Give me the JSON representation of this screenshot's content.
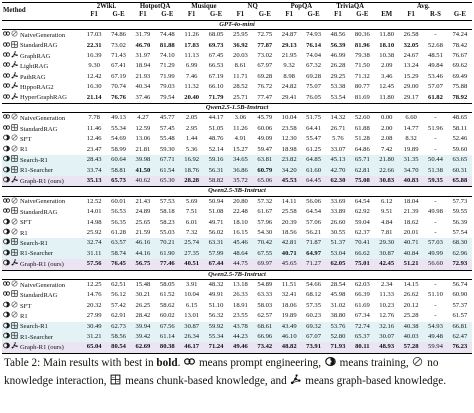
{
  "table": {
    "method_header": "Method",
    "groups": [
      "2Wiki.",
      "HotpotQA",
      "Musique",
      "NQ",
      "PopQA",
      "TriviaQA",
      "Avg."
    ],
    "subcols": [
      "F1",
      "G-E",
      "F1",
      "G-E",
      "F1",
      "G-E",
      "F1",
      "G-E",
      "F1",
      "G-E",
      "F1",
      "G-E",
      "EM",
      "F1",
      "R-S",
      "G-E"
    ],
    "sections": [
      {
        "title": "GPT-4o-mini",
        "rows": [
          {
            "icons": [
              "prompt",
              "none"
            ],
            "method": "NaiveGeneration",
            "values": [
              "17.03",
              "74.86",
              "31.79",
              "74.48",
              "11.26",
              "68.05",
              "25.95",
              "72.75",
              "24.87",
              "74.93",
              "48.56",
              "80.36",
              "11.80",
              "26.58",
              "-",
              "74.24"
            ],
            "bold": [],
            "band": false,
            "ours": false
          },
          {
            "icons": [
              "prompt",
              "chunk"
            ],
            "method": "StandardRAG",
            "values": [
              "22.31",
              "73.02",
              "46.70",
              "81.88",
              "17.83",
              "69.73",
              "36.92",
              "77.87",
              "29.13",
              "76.14",
              "56.39",
              "81.96",
              "18.10",
              "32.05",
              "52.68",
              "78.42"
            ],
            "bold": [
              0,
              2,
              3,
              4,
              5,
              6,
              7,
              8,
              9,
              10,
              11,
              12,
              13
            ],
            "band": false,
            "ours": false
          },
          {
            "icons": [
              "prompt",
              "graph"
            ],
            "method": "GraphRAG",
            "values": [
              "16.39",
              "71.43",
              "31.97",
              "74.10",
              "11.13",
              "67.45",
              "20.03",
              "73.02",
              "21.95",
              "74.04",
              "46.99",
              "79.38",
              "10.38",
              "24.67",
              "48.51",
              "76.67"
            ],
            "bold": [],
            "band": false,
            "ours": false
          },
          {
            "icons": [
              "prompt",
              "graph"
            ],
            "method": "LightRAG",
            "values": [
              "9.30",
              "67.41",
              "18.94",
              "71.29",
              "6.99",
              "66.53",
              "8.61",
              "67.97",
              "9.32",
              "67.32",
              "26.28",
              "71.50",
              "2.09",
              "13.24",
              "49.84",
              "69.62"
            ],
            "bold": [],
            "band": false,
            "ours": false
          },
          {
            "icons": [
              "prompt",
              "graph"
            ],
            "method": "PathRAG",
            "values": [
              "12.42",
              "67.19",
              "21.93",
              "71.99",
              "7.46",
              "67.19",
              "11.71",
              "69.28",
              "8.98",
              "69.28",
              "29.25",
              "71.32",
              "3.46",
              "15.29",
              "53.46",
              "69.49"
            ],
            "bold": [],
            "band": false,
            "ours": false
          },
          {
            "icons": [
              "prompt",
              "graph"
            ],
            "method": "HippoRAG2",
            "values": [
              "16.30",
              "70.74",
              "40.34",
              "79.03",
              "11.32",
              "66.10",
              "28.52",
              "76.72",
              "24.82",
              "75.07",
              "53.38",
              "80.77",
              "12.45",
              "29.00",
              "57.07",
              "75.88"
            ],
            "bold": [],
            "band": false,
            "ours": false
          },
          {
            "icons": [
              "prompt",
              "graph"
            ],
            "method": "HyperGraphRAG",
            "values": [
              "21.14",
              "76.76",
              "37.46",
              "79.54",
              "20.40",
              "71.79",
              "25.71",
              "77.47",
              "29.41",
              "76.05",
              "53.54",
              "81.69",
              "11.80",
              "29.17",
              "61.82",
              "78.92"
            ],
            "bold": [
              0,
              1,
              4,
              5,
              14,
              15
            ],
            "band": false,
            "ours": false
          }
        ]
      },
      {
        "title": "Qwen2.5-1.5B-Instruct",
        "rows": [
          {
            "icons": [
              "prompt",
              "none"
            ],
            "method": "NaiveGeneration",
            "values": [
              "7.78",
              "49.13",
              "4.27",
              "45.77",
              "2.05",
              "44.17",
              "3.06",
              "45.79",
              "10.04",
              "51.75",
              "14.32",
              "52.60",
              "0.00",
              "6.60",
              "-",
              "48.65"
            ],
            "bold": [],
            "band": false,
            "ours": false
          },
          {
            "icons": [
              "prompt",
              "chunk"
            ],
            "method": "StandardRAG",
            "values": [
              "11.46",
              "55.34",
              "12.59",
              "57.45",
              "2.95",
              "51.05",
              "11.26",
              "60.06",
              "23.58",
              "64.41",
              "26.71",
              "61.88",
              "2.00",
              "14.77",
              "51.96",
              "58.11"
            ],
            "bold": [],
            "band": false,
            "ours": false
          },
          {
            "icons": [
              "train",
              "none"
            ],
            "method": "SFT",
            "values": [
              "12.46",
              "54.69",
              "13.06",
              "55.48",
              "1.44",
              "48.76",
              "4.91",
              "49.09",
              "12.30",
              "55.47",
              "5.76",
              "51.28",
              "2.08",
              "8.32",
              "-",
              "52.46"
            ],
            "bold": [],
            "band": false,
            "ours": false
          },
          {
            "icons": [
              "train",
              "none"
            ],
            "method": "R1",
            "values": [
              "23.47",
              "58.99",
              "21.81",
              "59.30",
              "5.36",
              "52.14",
              "15.27",
              "59.47",
              "18.98",
              "61.25",
              "33.07",
              "64.86",
              "7.42",
              "19.89",
              "-",
              "59.60"
            ],
            "bold": [],
            "band": false,
            "ours": false
          },
          {
            "icons": [
              "train",
              "chunk"
            ],
            "method": "Search-R1",
            "values": [
              "28.43",
              "60.64",
              "39.98",
              "67.71",
              "16.92",
              "59.16",
              "34.65",
              "63.81",
              "23.82",
              "64.85",
              "45.13",
              "65.71",
              "21.80",
              "31.35",
              "50.44",
              "63.65"
            ],
            "bold": [],
            "band": true,
            "ours": false
          },
          {
            "icons": [
              "train",
              "chunk"
            ],
            "method": "R1-Searcher",
            "values": [
              "33.74",
              "58.81",
              "41.50",
              "61.54",
              "18.76",
              "56.31",
              "36.86",
              "60.79",
              "34.20",
              "61.60",
              "42.70",
              "62.81",
              "22.66",
              "34.70",
              "51.38",
              "60.31"
            ],
            "bold": [
              2,
              7
            ],
            "band": true,
            "ours": false
          },
          {
            "icons": [
              "train",
              "graph"
            ],
            "method": "Graph-R1 (ours)",
            "values": [
              "35.13",
              "65.73",
              "40.62",
              "65.30",
              "28.28",
              "58.82",
              "35.72",
              "65.06",
              "45.53",
              "64.45",
              "62.30",
              "75.08",
              "30.83",
              "40.83",
              "59.35",
              "65.88"
            ],
            "bold": [
              0,
              1,
              4,
              8,
              10,
              11,
              12,
              13,
              14,
              15
            ],
            "band": false,
            "ours": true
          }
        ]
      },
      {
        "title": "Qwen2.5-3B-Instruct",
        "rows": [
          {
            "icons": [
              "prompt",
              "none"
            ],
            "method": "NaiveGeneration",
            "values": [
              "12.52",
              "60.01",
              "21.43",
              "57.53",
              "5.69",
              "50.94",
              "20.80",
              "57.32",
              "14.11",
              "56.06",
              "33.69",
              "64.54",
              "6.12",
              "18.04",
              "-",
              "57.73"
            ],
            "bold": [],
            "band": false,
            "ours": false
          },
          {
            "icons": [
              "prompt",
              "chunk"
            ],
            "method": "StandardRAG",
            "values": [
              "14.01",
              "56.53",
              "24.89",
              "58.18",
              "7.51",
              "51.08",
              "22.48",
              "61.67",
              "25.58",
              "64.54",
              "33.89",
              "62.92",
              "9.51",
              "21.39",
              "49.98",
              "59.55"
            ],
            "bold": [],
            "band": false,
            "ours": false
          },
          {
            "icons": [
              "train",
              "none"
            ],
            "method": "SFT",
            "values": [
              "14.98",
              "56.35",
              "25.65",
              "58.23",
              "6.01",
              "49.71",
              "18.10",
              "57.96",
              "20.39",
              "57.06",
              "26.60",
              "59.04",
              "4.84",
              "18.62",
              "-",
              "56.39"
            ],
            "bold": [],
            "band": false,
            "ours": false
          },
          {
            "icons": [
              "train",
              "none"
            ],
            "method": "R1",
            "values": [
              "25.92",
              "61.28",
              "21.59",
              "55.03",
              "7.32",
              "56.02",
              "16.15",
              "54.30",
              "18.56",
              "56.21",
              "30.55",
              "62.37",
              "7.81",
              "20.01",
              "-",
              "57.54"
            ],
            "bold": [],
            "band": false,
            "ours": false
          },
          {
            "icons": [
              "train",
              "chunk"
            ],
            "method": "Search-R1",
            "values": [
              "32.74",
              "63.57",
              "46.16",
              "70.21",
              "25.74",
              "63.31",
              "45.46",
              "70.42",
              "42.81",
              "71.87",
              "51.37",
              "70.41",
              "29.30",
              "40.71",
              "57.03",
              "68.30"
            ],
            "bold": [],
            "band": true,
            "ours": false
          },
          {
            "icons": [
              "train",
              "chunk"
            ],
            "method": "R1-Searcher",
            "values": [
              "31.11",
              "58.74",
              "44.16",
              "61.90",
              "27.35",
              "57.99",
              "48.64",
              "67.55",
              "40.71",
              "64.97",
              "53.04",
              "66.62",
              "30.87",
              "40.84",
              "49.99",
              "62.96"
            ],
            "bold": [
              8,
              9
            ],
            "band": true,
            "ours": false
          },
          {
            "icons": [
              "train",
              "graph"
            ],
            "method": "Graph-R1 (ours)",
            "values": [
              "57.56",
              "76.45",
              "56.75",
              "77.46",
              "40.51",
              "67.44",
              "44.75",
              "69.97",
              "45.65",
              "71.27",
              "62.05",
              "75.01",
              "42.45",
              "51.21",
              "56.60",
              "72.93"
            ],
            "bold": [
              0,
              1,
              2,
              3,
              4,
              5,
              10,
              11,
              12,
              13,
              15
            ],
            "band": false,
            "ours": true
          }
        ]
      },
      {
        "title": "Qwen2.5-7B-Instruct",
        "rows": [
          {
            "icons": [
              "prompt",
              "none"
            ],
            "method": "NaiveGeneration",
            "values": [
              "12.25",
              "62.51",
              "15.48",
              "58.05",
              "3.91",
              "48.32",
              "13.18",
              "54.89",
              "11.51",
              "54.66",
              "28.54",
              "62.03",
              "2.34",
              "14.15",
              "-",
              "56.74"
            ],
            "bold": [],
            "band": false,
            "ours": false
          },
          {
            "icons": [
              "prompt",
              "chunk"
            ],
            "method": "StandardRAG",
            "values": [
              "14.76",
              "56.12",
              "30.21",
              "61.52",
              "10.04",
              "49.91",
              "26.33",
              "63.33",
              "32.41",
              "68.12",
              "45.98",
              "66.39",
              "11.33",
              "26.62",
              "51.10",
              "60.90"
            ],
            "bold": [],
            "band": false,
            "ours": false
          },
          {
            "icons": [
              "train",
              "none"
            ],
            "method": "SFT",
            "values": [
              "20.32",
              "57.42",
              "26.25",
              "58.62",
              "6.15",
              "51.10",
              "18.91",
              "58.03",
              "18.06",
              "57.35",
              "31.02",
              "61.69",
              "10.23",
              "20.12",
              "-",
              "57.37"
            ],
            "bold": [],
            "band": false,
            "ours": false
          },
          {
            "icons": [
              "train",
              "none"
            ],
            "method": "R1",
            "values": [
              "27.99",
              "62.91",
              "28.42",
              "60.02",
              "13.01",
              "56.32",
              "23.55",
              "62.57",
              "19.89",
              "60.23",
              "38.80",
              "67.34",
              "12.76",
              "25.28",
              "-",
              "61.57"
            ],
            "bold": [],
            "band": false,
            "ours": false
          },
          {
            "icons": [
              "train",
              "chunk"
            ],
            "method": "Search-R1",
            "values": [
              "30.49",
              "62.73",
              "39.94",
              "67.56",
              "30.87",
              "59.92",
              "43.78",
              "68.61",
              "43.49",
              "69.32",
              "53.76",
              "72.74",
              "32.16",
              "40.38",
              "54.93",
              "66.81"
            ],
            "bold": [],
            "band": true,
            "ours": false
          },
          {
            "icons": [
              "train",
              "chunk"
            ],
            "method": "R1-Searcher",
            "values": [
              "31.21",
              "58.56",
              "39.42",
              "61.14",
              "26.34",
              "55.34",
              "44.23",
              "66.96",
              "46.10",
              "67.07",
              "52.80",
              "65.37",
              "30.07",
              "40.03",
              "49.48",
              "62.47"
            ],
            "bold": [],
            "band": true,
            "ours": false
          },
          {
            "icons": [
              "train",
              "graph"
            ],
            "method": "Graph-R1 (ours)",
            "values": [
              "65.04",
              "80.54",
              "62.69",
              "80.38",
              "46.17",
              "71.24",
              "49.46",
              "73.42",
              "48.82",
              "73.91",
              "71.93",
              "80.11",
              "48.93",
              "57.28",
              "59.94",
              "76.23"
            ],
            "bold": [
              0,
              1,
              2,
              3,
              4,
              5,
              6,
              7,
              8,
              9,
              10,
              11,
              12,
              13,
              15
            ],
            "band": false,
            "ours": true
          }
        ]
      }
    ]
  },
  "caption": {
    "prefix": "Table 2:  Main results with best in ",
    "bold_word": "bold",
    "after_bold": ".",
    "prompt_text": " means prompt engineering, ",
    "train_text": " means training, ",
    "none_text": " no knowledge interaction, ",
    "chunk_text": " means chunk-based knowledge, and ",
    "graph_text": " means graph-based knowledge."
  },
  "colors": {
    "band": "#e3f3f5",
    "ours": "#ebe4f3",
    "text": "#111111"
  },
  "icon_names": {
    "prompt": "prompt-engineering-icon",
    "train": "training-icon",
    "none": "no-knowledge-icon",
    "chunk": "chunk-knowledge-icon",
    "graph": "graph-knowledge-icon"
  }
}
